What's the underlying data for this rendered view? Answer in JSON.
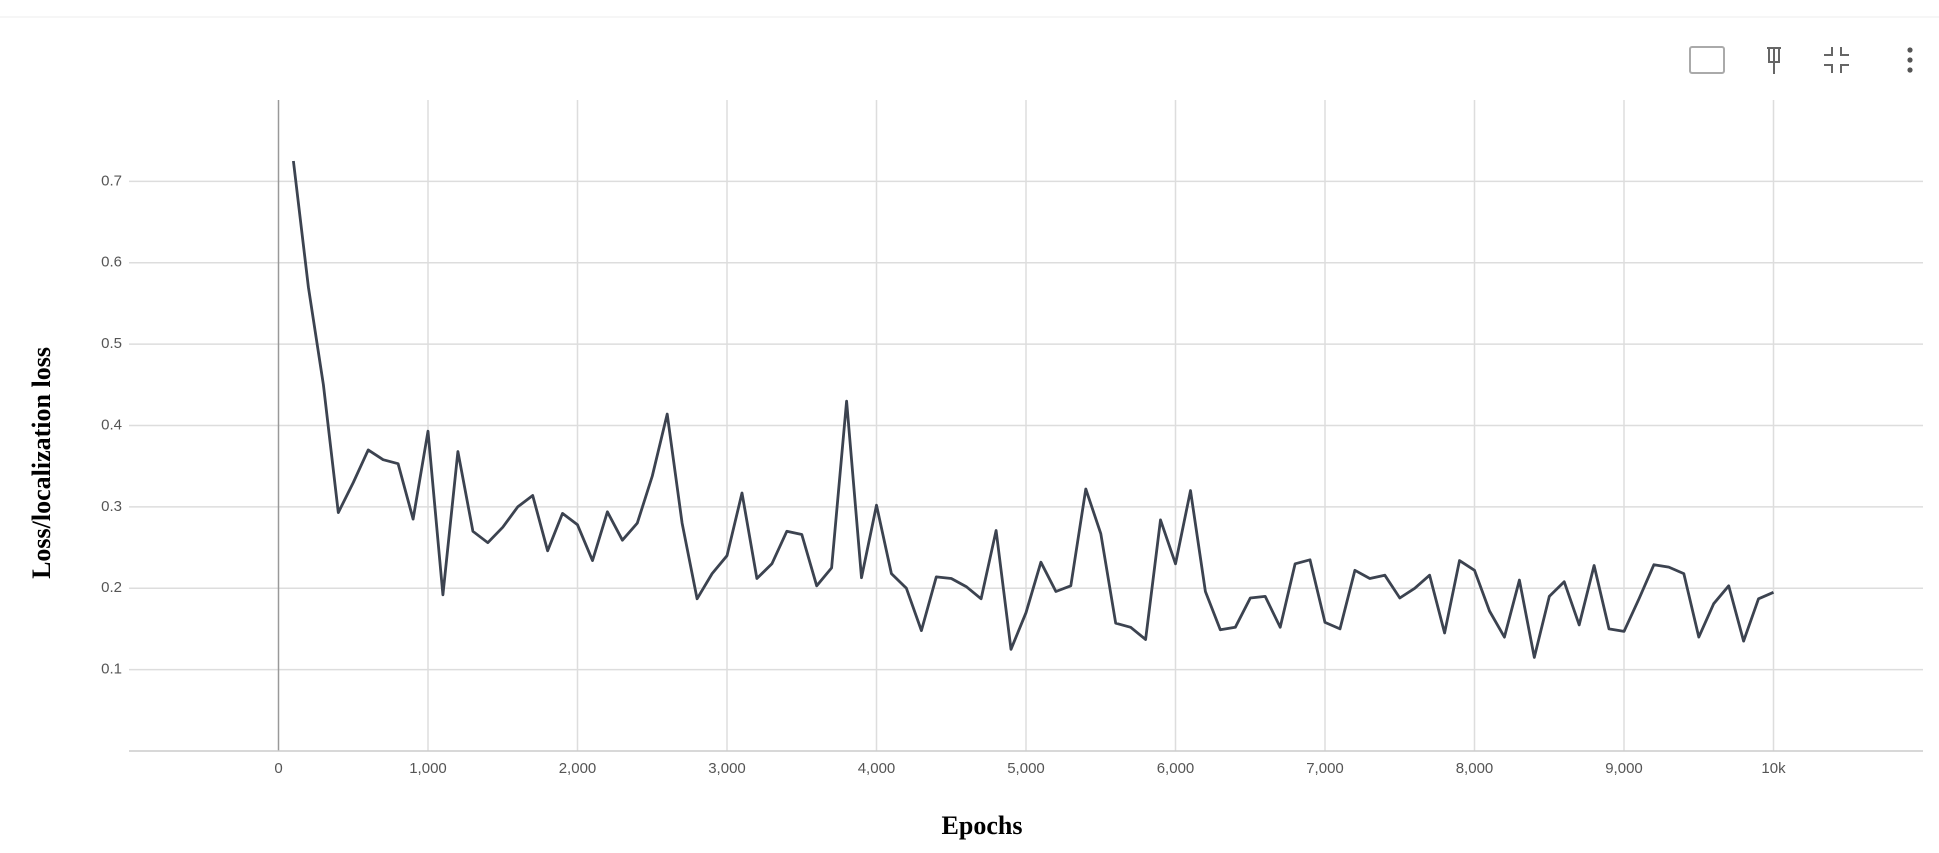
{
  "chart_data": {
    "type": "line",
    "x_label": "Epochs",
    "y_label": "Loss/localization loss",
    "x": [
      100,
      200,
      300,
      400,
      500,
      600,
      700,
      800,
      900,
      1000,
      1100,
      1200,
      1300,
      1400,
      1500,
      1600,
      1700,
      1800,
      1900,
      2000,
      2100,
      2200,
      2300,
      2400,
      2500,
      2600,
      2700,
      2800,
      2900,
      3000,
      3100,
      3200,
      3300,
      3400,
      3500,
      3600,
      3700,
      3800,
      3900,
      4000,
      4100,
      4200,
      4300,
      4400,
      4500,
      4600,
      4700,
      4800,
      4900,
      5000,
      5100,
      5200,
      5300,
      5400,
      5500,
      5600,
      5700,
      5800,
      5900,
      6000,
      6100,
      6200,
      6300,
      6400,
      6500,
      6600,
      6700,
      6800,
      6900,
      7000,
      7100,
      7200,
      7300,
      7400,
      7500,
      7600,
      7700,
      7800,
      7900,
      8000,
      8100,
      8200,
      8300,
      8400,
      8500,
      8600,
      8700,
      8800,
      8900,
      9000,
      9100,
      9200,
      9300,
      9400,
      9500,
      9600,
      9700,
      9800,
      9900,
      10000
    ],
    "series": [
      {
        "color": "#3c4350",
        "values": [
          0.725,
          0.57,
          0.45,
          0.293,
          0.33,
          0.37,
          0.358,
          0.353,
          0.285,
          0.393,
          0.192,
          0.368,
          0.27,
          0.256,
          0.275,
          0.3,
          0.314,
          0.246,
          0.292,
          0.278,
          0.234,
          0.294,
          0.259,
          0.28,
          0.338,
          0.414,
          0.28,
          0.187,
          0.218,
          0.24,
          0.317,
          0.212,
          0.23,
          0.27,
          0.266,
          0.203,
          0.225,
          0.43,
          0.213,
          0.302,
          0.218,
          0.2,
          0.148,
          0.214,
          0.212,
          0.202,
          0.187,
          0.271,
          0.125,
          0.17,
          0.232,
          0.196,
          0.203,
          0.322,
          0.267,
          0.157,
          0.152,
          0.137,
          0.284,
          0.23,
          0.32,
          0.196,
          0.149,
          0.152,
          0.188,
          0.19,
          0.152,
          0.23,
          0.235,
          0.158,
          0.15,
          0.222,
          0.212,
          0.216,
          0.188,
          0.2,
          0.216,
          0.145,
          0.234,
          0.222,
          0.172,
          0.14,
          0.21,
          0.115,
          0.19,
          0.208,
          0.155,
          0.228,
          0.15,
          0.147,
          0.187,
          0.229,
          0.226,
          0.218,
          0.14,
          0.181,
          0.203,
          0.135,
          0.187,
          0.195
        ]
      }
    ],
    "xlim": [
      -1000,
      11000
    ],
    "xticks": [
      0,
      {
        "value": 1000,
        "label": "1,000"
      },
      {
        "value": 2000,
        "label": "2,000"
      },
      {
        "value": 3000,
        "label": "3,000"
      },
      {
        "value": 4000,
        "label": "4,000"
      },
      {
        "value": 5000,
        "label": "5,000"
      },
      {
        "value": 6000,
        "label": "6,000"
      },
      {
        "value": 7000,
        "label": "7,000"
      },
      {
        "value": 8000,
        "label": "8,000"
      },
      {
        "value": 9000,
        "label": "9,000"
      },
      {
        "value": 10000,
        "label": "10k"
      }
    ],
    "ylim": [
      0,
      0.8
    ],
    "yticks": [
      0.1,
      0.2,
      0.3,
      0.4,
      0.5,
      0.6,
      0.7
    ],
    "grid": true
  }
}
